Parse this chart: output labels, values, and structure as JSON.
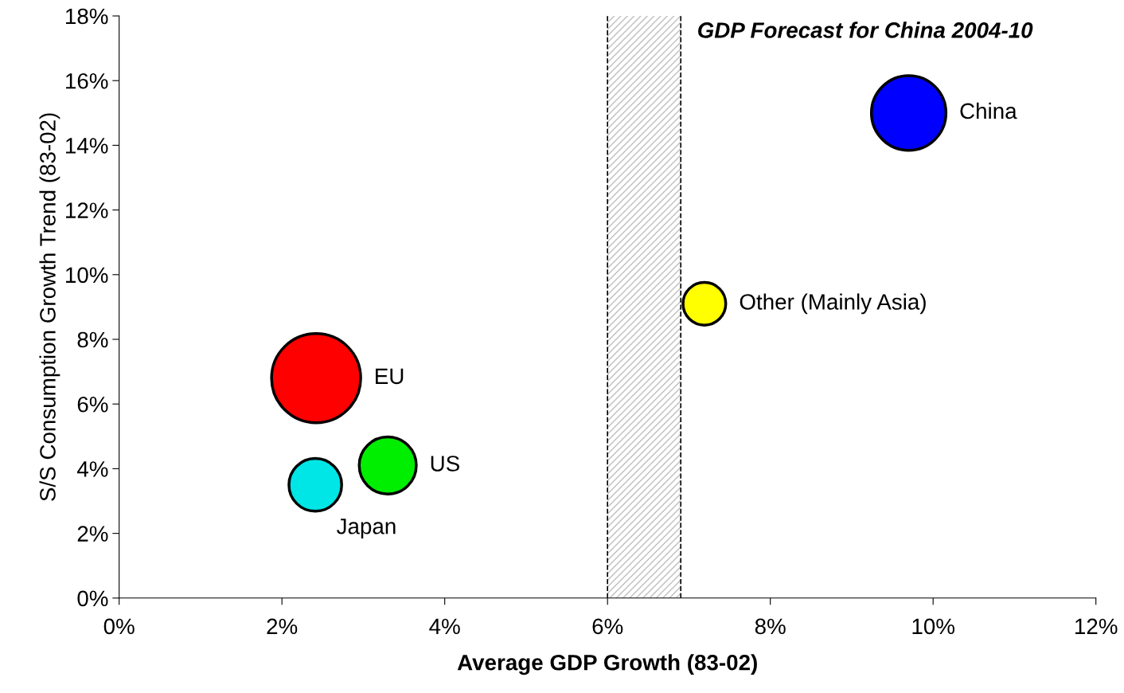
{
  "chart_data": {
    "type": "bubble",
    "xlabel": "Average GDP Growth (83-02)",
    "ylabel": "S/S Consumption Growth Trend (83-02)",
    "series": [
      {
        "name": "China",
        "color": "#0000ff",
        "x": [
          9.7
        ],
        "values": [
          15.0
        ],
        "sizes": [
          0.7
        ]
      },
      {
        "name": "Other (Mainly Asia)",
        "color": "#ffff00",
        "x": [
          7.19
        ],
        "values": [
          9.1
        ],
        "sizes": [
          0.23
        ]
      },
      {
        "name": "EU",
        "color": "#ff0000",
        "x": [
          2.42
        ],
        "values": [
          6.8
        ],
        "sizes": [
          1.0
        ]
      },
      {
        "name": "US",
        "color": "#00ee00",
        "x": [
          3.3
        ],
        "values": [
          4.1
        ],
        "sizes": [
          0.41
        ]
      },
      {
        "name": "Japan",
        "color": "#00e5e5",
        "x": [
          2.41
        ],
        "values": [
          3.5
        ],
        "sizes": [
          0.35
        ]
      }
    ],
    "xlim": [
      0,
      12
    ],
    "ylim": [
      0,
      18
    ],
    "xticks": [
      {
        "value": 0,
        "label": "0%"
      },
      {
        "value": 2,
        "label": "2%"
      },
      {
        "value": 4,
        "label": "4%"
      },
      {
        "value": 6,
        "label": "6%"
      },
      {
        "value": 8,
        "label": "8%"
      },
      {
        "value": 10,
        "label": "10%"
      },
      {
        "value": 12,
        "label": "12%"
      }
    ],
    "yticks": [
      {
        "value": 0,
        "label": "0%"
      },
      {
        "value": 2,
        "label": "2%"
      },
      {
        "value": 4,
        "label": "4%"
      },
      {
        "value": 6,
        "label": "6%"
      },
      {
        "value": 8,
        "label": "8%"
      },
      {
        "value": 10,
        "label": "10%"
      },
      {
        "value": 12,
        "label": "12%"
      },
      {
        "value": 14,
        "label": "14%"
      },
      {
        "value": 16,
        "label": "16%"
      },
      {
        "value": 18,
        "label": "18%"
      }
    ],
    "bands": [
      {
        "axis": "x",
        "from": 6,
        "to": 6.9,
        "label": "GDP Forecast for China 2004-10",
        "color": "#bfbfbf"
      }
    ],
    "ref_lines": [
      {
        "axis": "x",
        "value": 6,
        "color": "#000000",
        "line_style": "dashed"
      },
      {
        "axis": "x",
        "value": 6.9,
        "color": "#000000",
        "line_style": "dashed"
      }
    ],
    "grid": false,
    "legend": false
  }
}
